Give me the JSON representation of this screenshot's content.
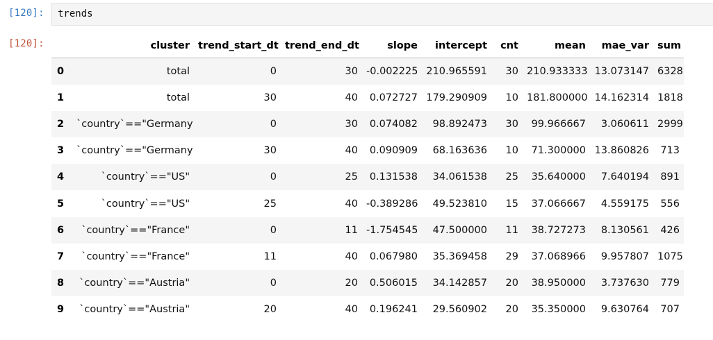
{
  "input_cell": {
    "prompt": "[120]:",
    "code": "trends"
  },
  "output_cell": {
    "prompt": "[120]:"
  },
  "table": {
    "columns": [
      "",
      "cluster",
      "trend_start_dt",
      "trend_end_dt",
      "slope",
      "intercept",
      "cnt",
      "mean",
      "mae_var",
      "sum"
    ],
    "rows": [
      {
        "index": "0",
        "cluster": "total",
        "trend_start_dt": "0",
        "trend_end_dt": "30",
        "slope": "-0.002225",
        "intercept": "210.965591",
        "cnt": "30",
        "mean": "210.933333",
        "mae_var": "13.073147",
        "sum": "6328"
      },
      {
        "index": "1",
        "cluster": "total",
        "trend_start_dt": "30",
        "trend_end_dt": "40",
        "slope": "0.072727",
        "intercept": "179.290909",
        "cnt": "10",
        "mean": "181.800000",
        "mae_var": "14.162314",
        "sum": "1818"
      },
      {
        "index": "2",
        "cluster": "`country`==\"Germany\"",
        "trend_start_dt": "0",
        "trend_end_dt": "30",
        "slope": "0.074082",
        "intercept": "98.892473",
        "cnt": "30",
        "mean": "99.966667",
        "mae_var": "3.060611",
        "sum": "2999"
      },
      {
        "index": "3",
        "cluster": "`country`==\"Germany\"",
        "trend_start_dt": "30",
        "trend_end_dt": "40",
        "slope": "0.090909",
        "intercept": "68.163636",
        "cnt": "10",
        "mean": "71.300000",
        "mae_var": "13.860826",
        "sum": "713"
      },
      {
        "index": "4",
        "cluster": "`country`==\"US\"",
        "trend_start_dt": "0",
        "trend_end_dt": "25",
        "slope": "0.131538",
        "intercept": "34.061538",
        "cnt": "25",
        "mean": "35.640000",
        "mae_var": "7.640194",
        "sum": "891"
      },
      {
        "index": "5",
        "cluster": "`country`==\"US\"",
        "trend_start_dt": "25",
        "trend_end_dt": "40",
        "slope": "-0.389286",
        "intercept": "49.523810",
        "cnt": "15",
        "mean": "37.066667",
        "mae_var": "4.559175",
        "sum": "556"
      },
      {
        "index": "6",
        "cluster": "`country`==\"France\"",
        "trend_start_dt": "0",
        "trend_end_dt": "11",
        "slope": "-1.754545",
        "intercept": "47.500000",
        "cnt": "11",
        "mean": "38.727273",
        "mae_var": "8.130561",
        "sum": "426"
      },
      {
        "index": "7",
        "cluster": "`country`==\"France\"",
        "trend_start_dt": "11",
        "trend_end_dt": "40",
        "slope": "0.067980",
        "intercept": "35.369458",
        "cnt": "29",
        "mean": "37.068966",
        "mae_var": "9.957807",
        "sum": "1075"
      },
      {
        "index": "8",
        "cluster": "`country`==\"Austria\"",
        "trend_start_dt": "0",
        "trend_end_dt": "20",
        "slope": "0.506015",
        "intercept": "34.142857",
        "cnt": "20",
        "mean": "38.950000",
        "mae_var": "3.737630",
        "sum": "779"
      },
      {
        "index": "9",
        "cluster": "`country`==\"Austria\"",
        "trend_start_dt": "20",
        "trend_end_dt": "40",
        "slope": "0.196241",
        "intercept": "29.560902",
        "cnt": "20",
        "mean": "35.350000",
        "mae_var": "9.630764",
        "sum": "707"
      }
    ]
  },
  "colors": {
    "input_prompt": "#3a7bbf",
    "output_prompt": "#c0543a",
    "editor_bg": "#f5f5f5",
    "stripe_bg": "#f5f5f5"
  }
}
